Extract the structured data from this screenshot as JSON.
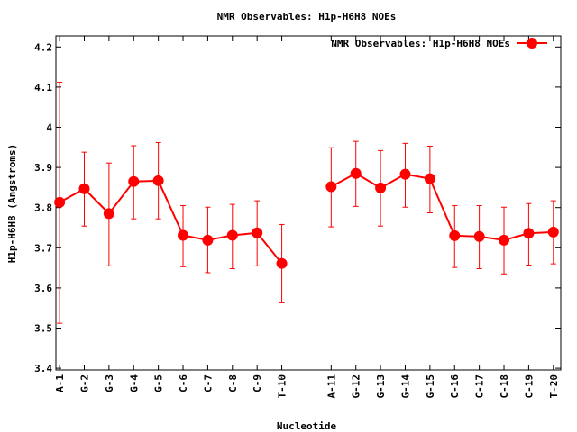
{
  "chart_data": {
    "type": "line",
    "title": "NMR Observables: H1p-H6H8 NOEs",
    "xlabel": "Nucleotide",
    "ylabel": "H1p-H6H8 (Angstroms)",
    "ylim": [
      3.4,
      4.2
    ],
    "xlim": [
      0.85,
      21.3
    ],
    "yticks": [
      "3.4",
      "3.5",
      "3.6",
      "3.7",
      "3.8",
      "3.9",
      "4",
      "4.1",
      "4.2"
    ],
    "ytick_values": [
      3.4,
      3.5,
      3.6,
      3.7,
      3.8,
      3.9,
      4.0,
      4.1,
      4.2
    ],
    "grid": false,
    "legend_position": "top-right",
    "color": "#ff0000",
    "series": [
      {
        "name": "NMR Observables: H1p-H6H8 NOEs",
        "points": [
          {
            "x": 1,
            "label": "A-1",
            "y": 3.813,
            "ymin": 3.512,
            "ymax": 4.112
          },
          {
            "x": 2,
            "label": "G-2",
            "y": 3.847,
            "ymin": 3.754,
            "ymax": 3.938
          },
          {
            "x": 3,
            "label": "G-3",
            "y": 3.785,
            "ymin": 3.655,
            "ymax": 3.911
          },
          {
            "x": 4,
            "label": "G-4",
            "y": 3.865,
            "ymin": 3.772,
            "ymax": 3.954
          },
          {
            "x": 5,
            "label": "G-5",
            "y": 3.867,
            "ymin": 3.772,
            "ymax": 3.962
          },
          {
            "x": 6,
            "label": "C-6",
            "y": 3.731,
            "ymin": 3.653,
            "ymax": 3.805
          },
          {
            "x": 7,
            "label": "C-7",
            "y": 3.719,
            "ymin": 3.638,
            "ymax": 3.801
          },
          {
            "x": 8,
            "label": "C-8",
            "y": 3.731,
            "ymin": 3.648,
            "ymax": 3.808
          },
          {
            "x": 9,
            "label": "C-9",
            "y": 3.737,
            "ymin": 3.655,
            "ymax": 3.817
          },
          {
            "x": 10,
            "label": "T-10",
            "y": 3.661,
            "ymin": 3.563,
            "ymax": 3.758
          },
          {
            "x": 12,
            "label": "A-11",
            "y": 3.852,
            "ymin": 3.752,
            "ymax": 3.949
          },
          {
            "x": 13,
            "label": "G-12",
            "y": 3.885,
            "ymin": 3.803,
            "ymax": 3.965
          },
          {
            "x": 14,
            "label": "G-13",
            "y": 3.849,
            "ymin": 3.754,
            "ymax": 3.942
          },
          {
            "x": 15,
            "label": "G-14",
            "y": 3.883,
            "ymin": 3.801,
            "ymax": 3.96
          },
          {
            "x": 16,
            "label": "G-15",
            "y": 3.872,
            "ymin": 3.787,
            "ymax": 3.953
          },
          {
            "x": 17,
            "label": "C-16",
            "y": 3.73,
            "ymin": 3.651,
            "ymax": 3.805
          },
          {
            "x": 18,
            "label": "C-17",
            "y": 3.728,
            "ymin": 3.648,
            "ymax": 3.805
          },
          {
            "x": 19,
            "label": "C-18",
            "y": 3.719,
            "ymin": 3.635,
            "ymax": 3.801
          },
          {
            "x": 20,
            "label": "C-19",
            "y": 3.736,
            "ymin": 3.657,
            "ymax": 3.81
          },
          {
            "x": 21,
            "label": "T-20",
            "y": 3.739,
            "ymin": 3.66,
            "ymax": 3.817
          }
        ]
      }
    ]
  }
}
